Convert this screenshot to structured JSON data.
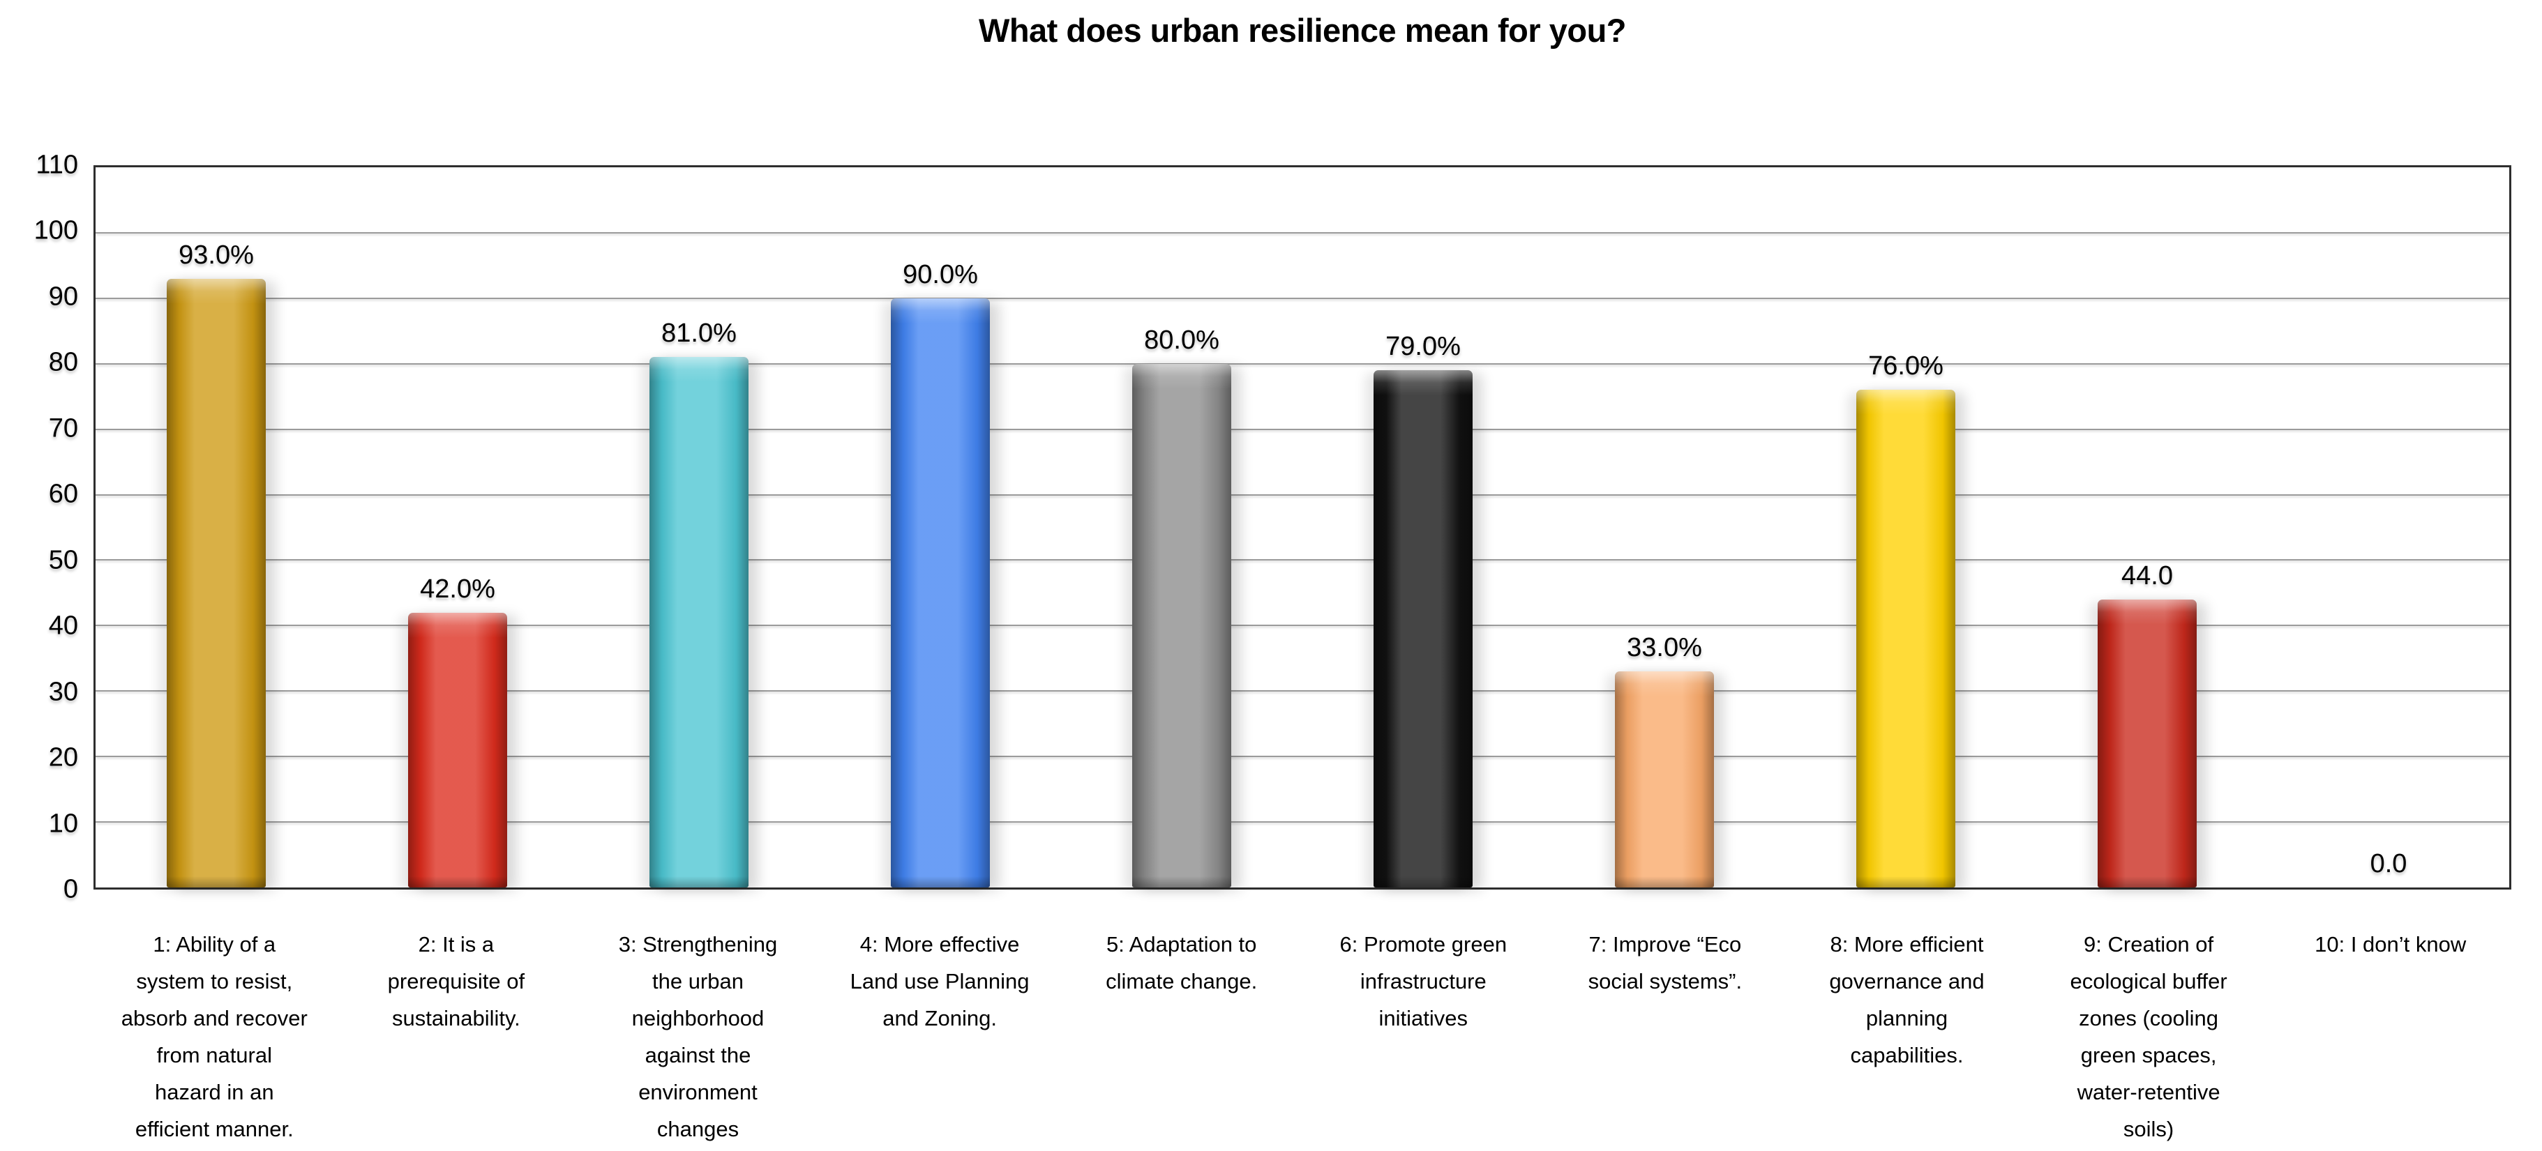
{
  "chart_data": {
    "type": "bar",
    "title": "What does urban resilience mean for you?",
    "categories": [
      "1: Ability of a system to resist, absorb and recover from natural hazard in an efficient manner.",
      "2: It is a prerequisite of sustainability.",
      "3: Strengthening the urban neighborhood against the environment changes",
      "4: More effective Land use Planning and Zoning.",
      "5: Adaptation to climate change.",
      "6: Promote green infrastructure initiatives",
      "7: Improve “Eco social systems”.",
      "8: More efficient governance and planning capabilities.",
      "9: Creation of ecological buffer zones (cooling green spaces, water-retentive soils)",
      "10: I don’t know"
    ],
    "category_lines": [
      [
        "1: Ability of a",
        "system to resist,",
        "absorb and recover",
        "from natural",
        "hazard in an",
        "efficient manner."
      ],
      [
        "2: It is a",
        "prerequisite of",
        "sustainability."
      ],
      [
        "3: Strengthening",
        "the urban",
        "neighborhood",
        "against the",
        "environment",
        "changes"
      ],
      [
        "4: More effective",
        "Land use Planning",
        "and Zoning."
      ],
      [
        "5: Adaptation to",
        "climate change."
      ],
      [
        "6: Promote green",
        "infrastructure",
        "initiatives"
      ],
      [
        "7: Improve “Eco",
        "social systems”."
      ],
      [
        "8: More efficient",
        "governance and",
        "planning",
        "capabilities."
      ],
      [
        "9: Creation of",
        "ecological buffer",
        "zones (cooling",
        "green spaces,",
        "water-retentive",
        "soils)"
      ],
      [
        "10: I don’t know"
      ]
    ],
    "values": [
      93,
      42,
      81,
      90,
      80,
      79,
      33,
      76,
      44,
      0
    ],
    "value_labels": [
      "93.0%",
      "42.0%",
      "81.0%",
      "90.0%",
      "80.0%",
      "79.0%",
      "33.0%",
      "76.0%",
      "44.0",
      "0.0"
    ],
    "bar_colors": [
      "#CE9A12",
      "#DC2C1D",
      "#4CC5D2",
      "#4183F2",
      "#8C8C8C",
      "#111111",
      "#F9A868",
      "#FFD100",
      "#C9291C",
      null
    ],
    "y_ticks": [
      0,
      10,
      20,
      30,
      40,
      50,
      60,
      70,
      80,
      90,
      100,
      110
    ],
    "ylim": [
      0,
      110
    ],
    "xlabel": "",
    "ylabel": "",
    "grid": true,
    "legend": false
  },
  "colors": {
    "background": "#FFFFFF",
    "gridline": "#9B9B9B",
    "plot_border": "#2E2E2E",
    "text": "#000000"
  }
}
